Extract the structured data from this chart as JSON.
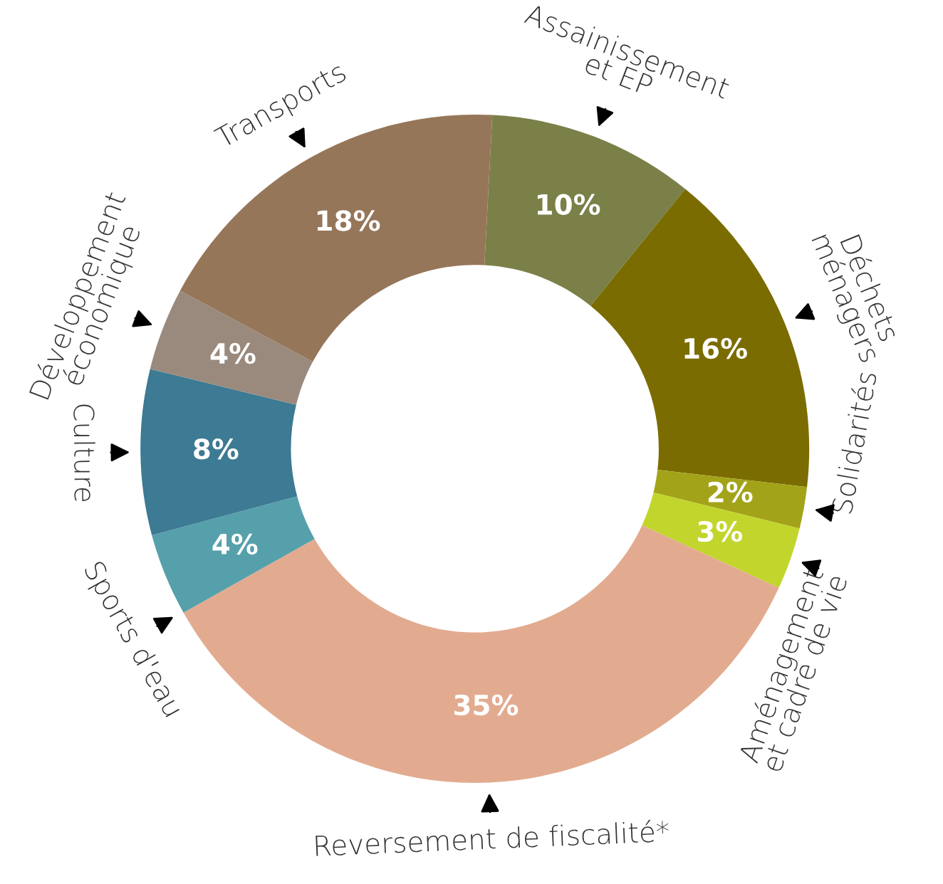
{
  "chart_data": {
    "type": "donut",
    "categories": [
      "Assainissement\net EP",
      "Déchets\nménagers",
      "Solidarités",
      "Aménagement\net cadre de vie",
      "Reversement de fiscalité*",
      "Sports d'eau",
      "Culture",
      "Développement\néconomique",
      "Transports"
    ],
    "values": [
      10,
      16,
      2,
      3,
      35,
      4,
      8,
      4,
      18
    ],
    "colors": [
      "#7a8048",
      "#7a6c00",
      "#a3a31a",
      "#c2d52c",
      "#e2ab90",
      "#56a0ab",
      "#3d7a93",
      "#9a8a7e",
      "#967659"
    ],
    "value_labels": [
      "10%",
      "16%",
      "2%",
      "3%",
      "35%",
      "4%",
      "8%",
      "4%",
      "18%"
    ],
    "legend": false
  }
}
